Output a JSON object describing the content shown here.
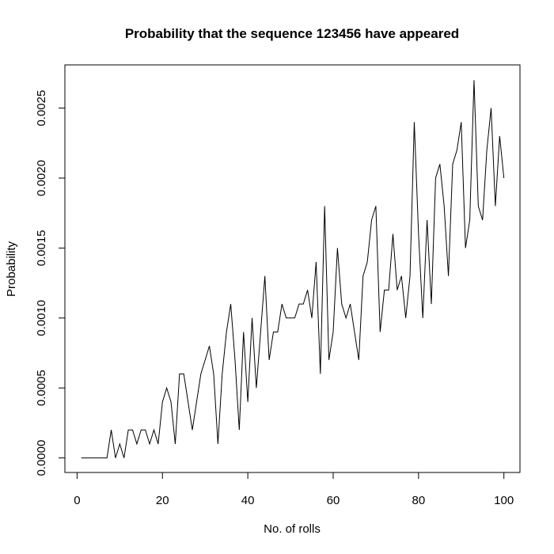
{
  "chart_data": {
    "type": "line",
    "title": "Probability that the sequence 123456 have appeared",
    "xlabel": "No. of rolls",
    "ylabel": "Probability",
    "xlim": [
      1,
      100
    ],
    "ylim": [
      0,
      0.0027
    ],
    "x_ticks": [
      0,
      20,
      40,
      60,
      80,
      100
    ],
    "y_ticks": [
      0.0,
      0.0005,
      0.001,
      0.0015,
      0.002,
      0.0025
    ],
    "x_tick_labels": [
      "0",
      "20",
      "40",
      "60",
      "80",
      "100"
    ],
    "y_tick_labels": [
      "0.0000",
      "0.0005",
      "0.0010",
      "0.0015",
      "0.0020",
      "0.0025"
    ],
    "grid": false,
    "line_color": "#000000",
    "x": [
      1,
      2,
      3,
      4,
      5,
      6,
      7,
      8,
      9,
      10,
      11,
      12,
      13,
      14,
      15,
      16,
      17,
      18,
      19,
      20,
      21,
      22,
      23,
      24,
      25,
      26,
      27,
      28,
      29,
      30,
      31,
      32,
      33,
      34,
      35,
      36,
      37,
      38,
      39,
      40,
      41,
      42,
      43,
      44,
      45,
      46,
      47,
      48,
      49,
      50,
      51,
      52,
      53,
      54,
      55,
      56,
      57,
      58,
      59,
      60,
      61,
      62,
      63,
      64,
      65,
      66,
      67,
      68,
      69,
      70,
      71,
      72,
      73,
      74,
      75,
      76,
      77,
      78,
      79,
      80,
      81,
      82,
      83,
      84,
      85,
      86,
      87,
      88,
      89,
      90,
      91,
      92,
      93,
      94,
      95,
      96,
      97,
      98,
      99,
      100
    ],
    "y": [
      0,
      0,
      0,
      0,
      0,
      0,
      0,
      0.0002,
      0,
      0.0001,
      0,
      0.0002,
      0.0002,
      0.0001,
      0.0002,
      0.0002,
      0.0001,
      0.0002,
      0.0001,
      0.0004,
      0.0005,
      0.0004,
      0.0001,
      0.0006,
      0.0006,
      0.0004,
      0.0002,
      0.0004,
      0.0006,
      0.0007,
      0.0008,
      0.0006,
      0.0001,
      0.0006,
      0.0009,
      0.0011,
      0.0007,
      0.0002,
      0.0009,
      0.0004,
      0.001,
      0.0005,
      0.0009,
      0.0013,
      0.0007,
      0.0009,
      0.0009,
      0.0011,
      0.001,
      0.001,
      0.001,
      0.0011,
      0.0011,
      0.0012,
      0.001,
      0.0014,
      0.0006,
      0.0018,
      0.0007,
      0.0009,
      0.0015,
      0.0011,
      0.001,
      0.0011,
      0.0009,
      0.0007,
      0.0013,
      0.0014,
      0.0017,
      0.0018,
      0.0009,
      0.0012,
      0.0012,
      0.0016,
      0.0012,
      0.0013,
      0.001,
      0.0013,
      0.0024,
      0.0016,
      0.001,
      0.0017,
      0.0011,
      0.002,
      0.0021,
      0.0018,
      0.0013,
      0.0021,
      0.0022,
      0.0024,
      0.0015,
      0.0017,
      0.0027,
      0.0018,
      0.0017,
      0.0022,
      0.0025,
      0.0018,
      0.0023,
      0.002
    ]
  }
}
